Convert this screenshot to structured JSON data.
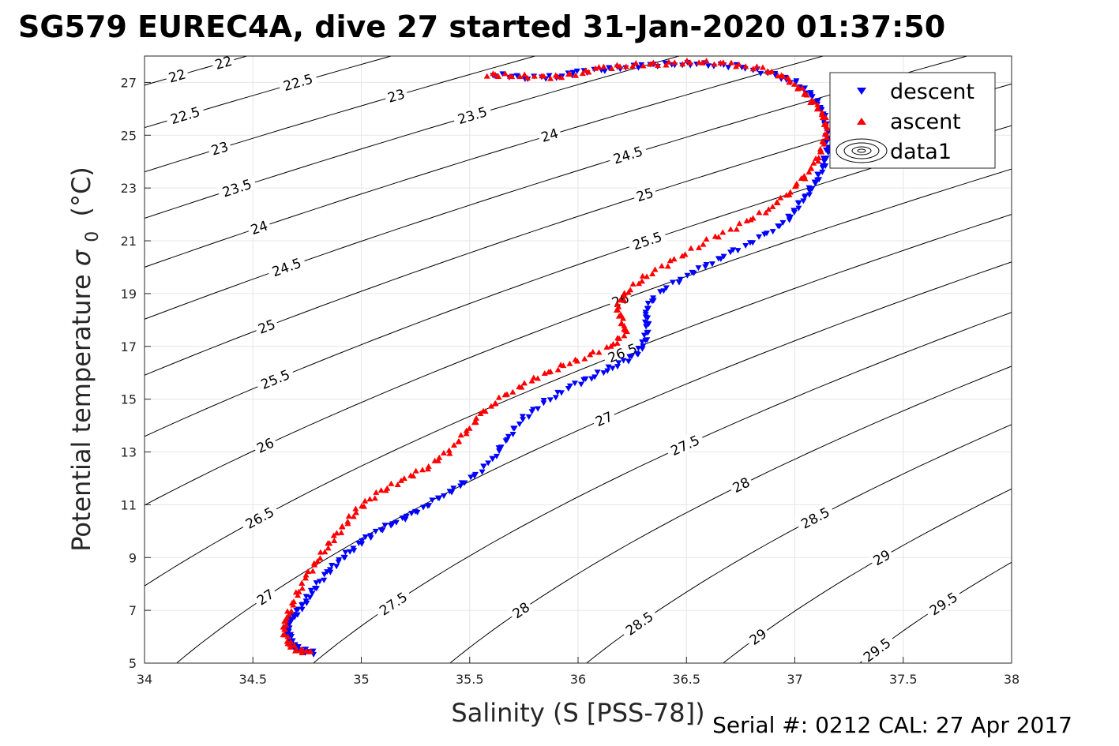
{
  "title": "SG579 EUREC4A, dive 27 started 31-Jan-2020 01:37:50",
  "footer": "Serial #: 0212  CAL: 27 Apr 2017",
  "chart_data": {
    "type": "scatter",
    "title": "SG579 EUREC4A, dive 27 started 31-Jan-2020 01:37:50",
    "xlabel": "Salinity (S [PSS-78])",
    "ylabel": "Potential temperature",
    "ylabel_symbol": "σ",
    "ylabel_subscript": "0",
    "ylabel_unit": "(°C)",
    "xlim": [
      34,
      38
    ],
    "ylim": [
      5,
      28
    ],
    "xticks": [
      "34",
      "34.5",
      "35",
      "35.5",
      "36",
      "36.5",
      "37",
      "37.5",
      "38"
    ],
    "yticks": [
      "5",
      "7",
      "9",
      "11",
      "13",
      "15",
      "17",
      "19",
      "21",
      "23",
      "25",
      "27"
    ],
    "grid": true,
    "legend_position": "top-right",
    "contour_levels": [
      "22",
      "22.5",
      "23",
      "23.5",
      "24",
      "24.5",
      "25",
      "25.5",
      "26",
      "26.5",
      "27",
      "27.5",
      "28",
      "28.5",
      "29",
      "29.5"
    ],
    "series": [
      {
        "name": "descent",
        "marker": "triangle-down",
        "color": "#0000ff",
        "points": [
          [
            34.78,
            5.4
          ],
          [
            34.72,
            5.5
          ],
          [
            34.68,
            5.7
          ],
          [
            34.67,
            6.0
          ],
          [
            34.66,
            6.3
          ],
          [
            34.67,
            6.6
          ],
          [
            34.7,
            6.9
          ],
          [
            34.74,
            7.3
          ],
          [
            34.78,
            7.8
          ],
          [
            34.84,
            8.4
          ],
          [
            34.9,
            8.9
          ],
          [
            34.97,
            9.4
          ],
          [
            35.05,
            9.9
          ],
          [
            35.15,
            10.3
          ],
          [
            35.25,
            10.7
          ],
          [
            35.35,
            11.2
          ],
          [
            35.45,
            11.7
          ],
          [
            35.55,
            12.3
          ],
          [
            35.62,
            12.9
          ],
          [
            35.68,
            13.6
          ],
          [
            35.75,
            14.3
          ],
          [
            35.85,
            14.9
          ],
          [
            35.97,
            15.5
          ],
          [
            36.08,
            15.9
          ],
          [
            36.18,
            16.3
          ],
          [
            36.27,
            16.7
          ],
          [
            36.31,
            17.2
          ],
          [
            36.32,
            17.8
          ],
          [
            36.31,
            18.3
          ],
          [
            36.35,
            18.9
          ],
          [
            36.48,
            19.6
          ],
          [
            36.6,
            20.1
          ],
          [
            36.72,
            20.6
          ],
          [
            36.86,
            21.2
          ],
          [
            36.97,
            21.8
          ],
          [
            37.01,
            22.3
          ],
          [
            37.06,
            22.8
          ],
          [
            37.1,
            23.3
          ],
          [
            37.13,
            23.8
          ],
          [
            37.15,
            24.4
          ],
          [
            37.15,
            25.0
          ],
          [
            37.14,
            25.6
          ],
          [
            37.12,
            26.1
          ],
          [
            37.07,
            26.6
          ],
          [
            37.0,
            27.0
          ],
          [
            36.9,
            27.3
          ],
          [
            36.75,
            27.6
          ],
          [
            36.6,
            27.7
          ],
          [
            36.45,
            27.7
          ],
          [
            36.3,
            27.65
          ],
          [
            36.15,
            27.5
          ],
          [
            36.0,
            27.4
          ],
          [
            35.9,
            27.2
          ],
          [
            35.75,
            27.2
          ],
          [
            35.6,
            27.3
          ]
        ]
      },
      {
        "name": "ascent",
        "marker": "triangle-up",
        "color": "#ff0000",
        "points": [
          [
            35.58,
            27.3
          ],
          [
            35.7,
            27.25
          ],
          [
            35.85,
            27.2
          ],
          [
            35.97,
            27.25
          ],
          [
            36.1,
            27.55
          ],
          [
            36.25,
            27.65
          ],
          [
            36.4,
            27.72
          ],
          [
            36.55,
            27.78
          ],
          [
            36.7,
            27.7
          ],
          [
            36.85,
            27.5
          ],
          [
            36.95,
            27.2
          ],
          [
            37.02,
            26.8
          ],
          [
            37.08,
            26.3
          ],
          [
            37.13,
            25.8
          ],
          [
            37.15,
            25.2
          ],
          [
            37.13,
            24.6
          ],
          [
            37.1,
            24.0
          ],
          [
            37.04,
            23.4
          ],
          [
            36.97,
            22.8
          ],
          [
            36.88,
            22.2
          ],
          [
            36.75,
            21.6
          ],
          [
            36.6,
            21.0
          ],
          [
            36.45,
            20.3
          ],
          [
            36.32,
            19.7
          ],
          [
            36.23,
            19.1
          ],
          [
            36.18,
            18.5
          ],
          [
            36.2,
            18.0
          ],
          [
            36.22,
            17.5
          ],
          [
            36.15,
            17.0
          ],
          [
            36.0,
            16.5
          ],
          [
            35.88,
            16.1
          ],
          [
            35.76,
            15.6
          ],
          [
            35.64,
            15.0
          ],
          [
            35.55,
            14.4
          ],
          [
            35.48,
            13.7
          ],
          [
            35.4,
            13.0
          ],
          [
            35.3,
            12.4
          ],
          [
            35.18,
            11.9
          ],
          [
            35.07,
            11.4
          ],
          [
            34.98,
            10.8
          ],
          [
            34.92,
            10.2
          ],
          [
            34.86,
            9.6
          ],
          [
            34.8,
            8.9
          ],
          [
            34.74,
            8.2
          ],
          [
            34.7,
            7.5
          ],
          [
            34.66,
            6.8
          ],
          [
            34.64,
            6.3
          ],
          [
            34.66,
            5.8
          ],
          [
            34.7,
            5.5
          ],
          [
            34.77,
            5.4
          ]
        ]
      },
      {
        "name": "data1",
        "marker": "contour"
      }
    ]
  }
}
